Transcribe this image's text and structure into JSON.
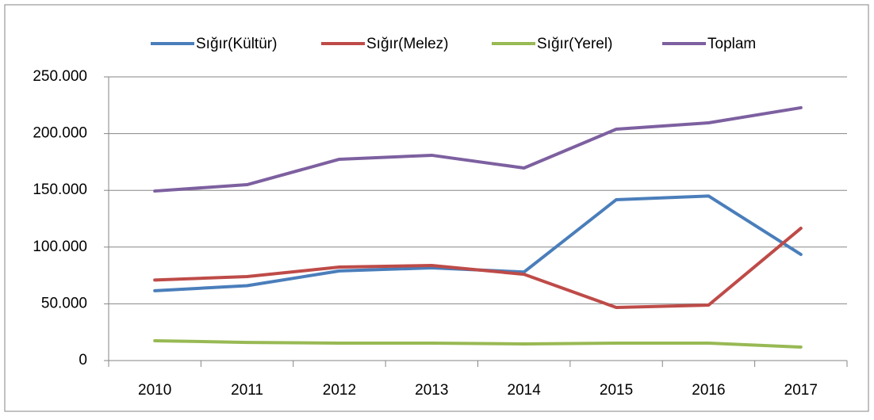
{
  "chart_data": {
    "type": "line",
    "categories": [
      "2010",
      "2011",
      "2012",
      "2013",
      "2014",
      "2015",
      "2016",
      "2017"
    ],
    "series": [
      {
        "name": "Sığır(Kültür)",
        "color": "#4a7ebb",
        "values": [
          61500,
          66000,
          79000,
          81700,
          78000,
          141800,
          145000,
          93500
        ]
      },
      {
        "name": "Sığır(Melez)",
        "color": "#be4b48",
        "values": [
          71000,
          74000,
          82400,
          83800,
          76000,
          46800,
          48900,
          116600
        ]
      },
      {
        "name": "Sığır(Yerel)",
        "color": "#98b954",
        "values": [
          17500,
          16000,
          15400,
          15400,
          14700,
          15400,
          15400,
          11900
        ]
      },
      {
        "name": "Toplam",
        "color": "#7d60a0",
        "values": [
          149400,
          155000,
          177400,
          180900,
          169700,
          203900,
          209500,
          222800
        ]
      }
    ],
    "ylim": [
      0,
      250000
    ],
    "yticks": [
      0,
      {
        "value": 50000,
        "label": "50.000"
      },
      {
        "value": 100000,
        "label": "100.000"
      },
      {
        "value": 150000,
        "label": "150.000"
      },
      {
        "value": 200000,
        "label": "200.000"
      },
      {
        "value": 250000,
        "label": "250.000"
      }
    ],
    "grid": true,
    "legend": "top"
  }
}
